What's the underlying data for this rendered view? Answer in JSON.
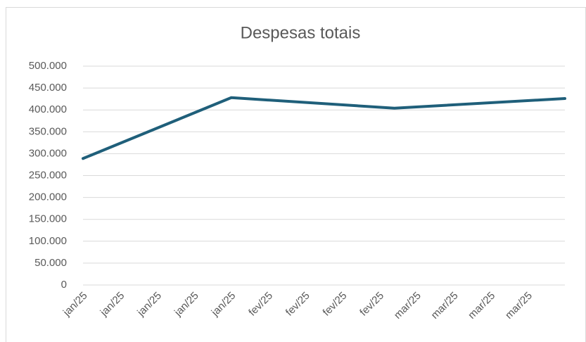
{
  "chart_data": {
    "type": "line",
    "title": "Despesas totais",
    "categories": [
      "jan/25",
      "jan/25",
      "jan/25",
      "jan/25",
      "jan/25",
      "fev/25",
      "fev/25",
      "fev/25",
      "fev/25",
      "mar/25",
      "mar/25",
      "mar/25",
      "mar/25"
    ],
    "x": [
      0,
      4,
      8.4,
      13
    ],
    "xlim": [
      0,
      13
    ],
    "series": [
      {
        "name": "Despesas totais",
        "color": "#1f5f7a",
        "values": [
          289000,
          428000,
          404000,
          426000
        ]
      }
    ],
    "ylim": [
      0,
      500000
    ],
    "yticks": [
      0,
      {
        "value": 50000,
        "label": "50.000"
      },
      {
        "value": 100000,
        "label": "100.000"
      },
      {
        "value": 150000,
        "label": "150.000"
      },
      {
        "value": 200000,
        "label": "200.000"
      },
      {
        "value": 250000,
        "label": "250.000"
      },
      {
        "value": 300000,
        "label": "300.000"
      },
      {
        "value": 350000,
        "label": "350.000"
      },
      {
        "value": 400000,
        "label": "400.000"
      },
      {
        "value": 450000,
        "label": "450.000"
      },
      {
        "value": 500000,
        "label": "500.000"
      }
    ],
    "grid": true
  }
}
